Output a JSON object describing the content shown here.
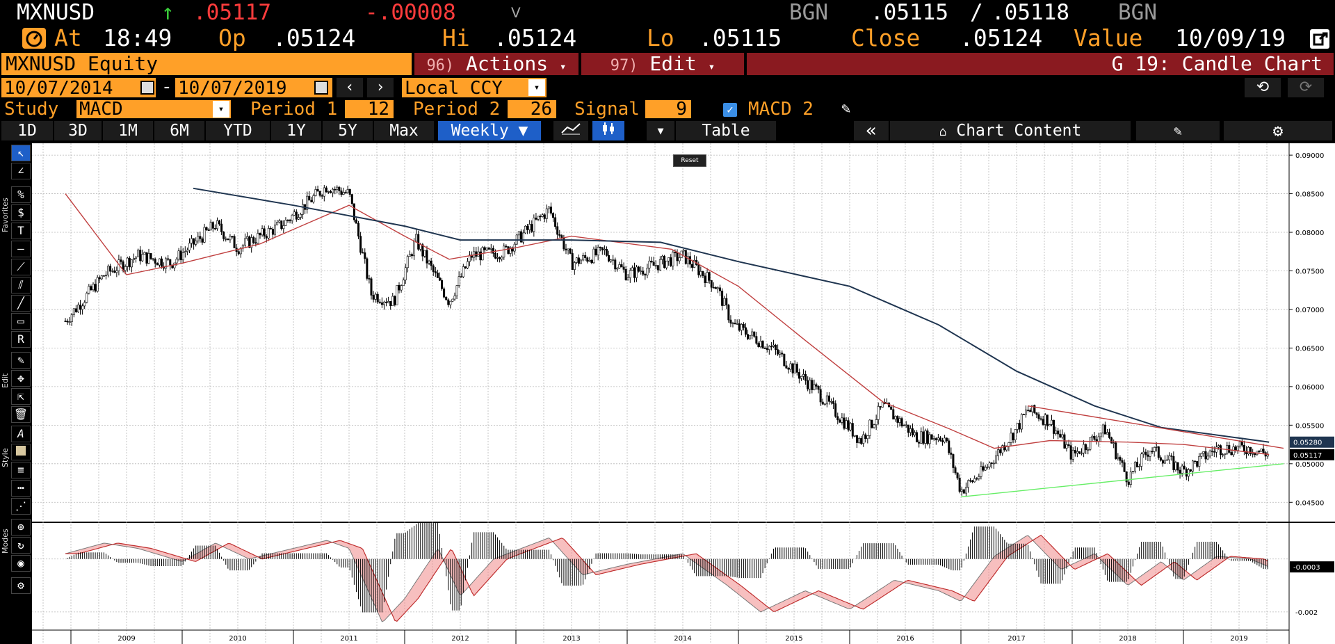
{
  "quote": {
    "ticker": "MXNUSD",
    "arrow": "↑",
    "last": ".05117",
    "change": "-.00008",
    "source1": "BGN",
    "bid": ".05115",
    "slash": "/",
    "ask": ".05118",
    "source2": "BGN"
  },
  "stats": {
    "at_label": "At",
    "time": "18:49",
    "op_label": "Op",
    "open": ".05124",
    "hi_label": "Hi",
    "high": ".05124",
    "lo_label": "Lo",
    "low": ".05115",
    "close_label": "Close",
    "close": ".05124",
    "value_label": "Value",
    "value_date": "10/09/19"
  },
  "header": {
    "security": "MXNUSD Equity",
    "actions_num": "96)",
    "actions_label": "Actions",
    "edit_num": "97)",
    "edit_label": "Edit",
    "function_title": "G 19: Candle Chart"
  },
  "range": {
    "start": "10/07/2014",
    "dash": "-",
    "end": "10/07/2019",
    "currency": "Local CCY"
  },
  "study": {
    "label": "Study",
    "value": "MACD",
    "period1_label": "Period 1",
    "period1": "12",
    "period2_label": "Period 2",
    "period2": "26",
    "signal_label": "Signal",
    "signal": "9",
    "macd2_label": "MACD 2"
  },
  "toolbar": {
    "periods": [
      "1D",
      "3D",
      "1M",
      "6M",
      "YTD",
      "1Y",
      "5Y",
      "Max"
    ],
    "frequency": "Weekly",
    "table": "Table",
    "chart_content": "Chart Content"
  },
  "side": {
    "favorites": "Favorites",
    "edit": "Edit",
    "style": "Style",
    "modes": "Modes"
  },
  "reset_label": "Reset",
  "colors": {
    "orange": "#ffa028",
    "red_value": "#ff3c3c",
    "green_arrow": "#3cd23c",
    "section_bar": "#8a1a20",
    "chart_bg": "#ffffff",
    "trend_green": "#66ee66",
    "ma_red": "#c04040",
    "ma_navy": "#1f3550",
    "macd_fill": "#f08a8a"
  },
  "chart_data": {
    "type": "candlestick",
    "frequency": "Weekly",
    "x_axis_years": [
      "2009",
      "2010",
      "2011",
      "2012",
      "2013",
      "2014",
      "2015",
      "2016",
      "2017",
      "2018",
      "2019"
    ],
    "y_ticks": [
      "0.09000",
      "0.08500",
      "0.08000",
      "0.07500",
      "0.07000",
      "0.06500",
      "0.06000",
      "0.05500",
      "0.05000",
      "0.04500"
    ],
    "ylim": [
      0.0425,
      0.091
    ],
    "price_path": [
      {
        "t": 2008.95,
        "v": 0.0685
      },
      {
        "t": 2009.3,
        "v": 0.0745
      },
      {
        "t": 2009.6,
        "v": 0.077
      },
      {
        "t": 2009.9,
        "v": 0.076
      },
      {
        "t": 2010.3,
        "v": 0.081
      },
      {
        "t": 2010.5,
        "v": 0.078
      },
      {
        "t": 2010.9,
        "v": 0.081
      },
      {
        "t": 2011.3,
        "v": 0.086
      },
      {
        "t": 2011.5,
        "v": 0.085
      },
      {
        "t": 2011.7,
        "v": 0.072
      },
      {
        "t": 2011.9,
        "v": 0.071
      },
      {
        "t": 2012.1,
        "v": 0.079
      },
      {
        "t": 2012.4,
        "v": 0.071
      },
      {
        "t": 2012.6,
        "v": 0.077
      },
      {
        "t": 2012.9,
        "v": 0.0775
      },
      {
        "t": 2013.3,
        "v": 0.083
      },
      {
        "t": 2013.5,
        "v": 0.076
      },
      {
        "t": 2013.8,
        "v": 0.0775
      },
      {
        "t": 2014.0,
        "v": 0.0745
      },
      {
        "t": 2014.5,
        "v": 0.077
      },
      {
        "t": 2014.8,
        "v": 0.073
      },
      {
        "t": 2014.95,
        "v": 0.068
      },
      {
        "t": 2015.3,
        "v": 0.065
      },
      {
        "t": 2015.7,
        "v": 0.0595
      },
      {
        "t": 2016.1,
        "v": 0.053
      },
      {
        "t": 2016.3,
        "v": 0.0575
      },
      {
        "t": 2016.6,
        "v": 0.0535
      },
      {
        "t": 2016.85,
        "v": 0.0535
      },
      {
        "t": 2017.0,
        "v": 0.0465
      },
      {
        "t": 2017.2,
        "v": 0.049
      },
      {
        "t": 2017.5,
        "v": 0.0545
      },
      {
        "t": 2017.6,
        "v": 0.057
      },
      {
        "t": 2017.8,
        "v": 0.0555
      },
      {
        "t": 2018.0,
        "v": 0.051
      },
      {
        "t": 2018.3,
        "v": 0.0545
      },
      {
        "t": 2018.5,
        "v": 0.048
      },
      {
        "t": 2018.7,
        "v": 0.052
      },
      {
        "t": 2019.0,
        "v": 0.049
      },
      {
        "t": 2019.3,
        "v": 0.052
      },
      {
        "t": 2019.6,
        "v": 0.052
      },
      {
        "t": 2019.77,
        "v": 0.0512
      }
    ],
    "moving_average_long": [
      {
        "t": 2010.1,
        "v": 0.0857
      },
      {
        "t": 2011.0,
        "v": 0.0835
      },
      {
        "t": 2012.0,
        "v": 0.0808
      },
      {
        "t": 2012.5,
        "v": 0.079
      },
      {
        "t": 2013.5,
        "v": 0.079
      },
      {
        "t": 2014.3,
        "v": 0.0787
      },
      {
        "t": 2015.0,
        "v": 0.0762
      },
      {
        "t": 2016.0,
        "v": 0.073
      },
      {
        "t": 2016.8,
        "v": 0.068
      },
      {
        "t": 2017.5,
        "v": 0.062
      },
      {
        "t": 2018.2,
        "v": 0.0575
      },
      {
        "t": 2018.8,
        "v": 0.0547
      },
      {
        "t": 2019.77,
        "v": 0.0528
      }
    ],
    "moving_average_short": [
      {
        "t": 2008.95,
        "v": 0.085
      },
      {
        "t": 2009.5,
        "v": 0.0745
      },
      {
        "t": 2010.0,
        "v": 0.076
      },
      {
        "t": 2010.7,
        "v": 0.0785
      },
      {
        "t": 2011.1,
        "v": 0.081
      },
      {
        "t": 2011.5,
        "v": 0.0835
      },
      {
        "t": 2012.0,
        "v": 0.0795
      },
      {
        "t": 2012.4,
        "v": 0.0765
      },
      {
        "t": 2013.0,
        "v": 0.078
      },
      {
        "t": 2013.5,
        "v": 0.0795
      },
      {
        "t": 2014.4,
        "v": 0.0778
      },
      {
        "t": 2015.0,
        "v": 0.073
      },
      {
        "t": 2015.6,
        "v": 0.066
      },
      {
        "t": 2016.3,
        "v": 0.058
      },
      {
        "t": 2016.9,
        "v": 0.0545
      },
      {
        "t": 2017.3,
        "v": 0.052
      },
      {
        "t": 2017.8,
        "v": 0.053
      },
      {
        "t": 2018.5,
        "v": 0.0528
      },
      {
        "t": 2019.0,
        "v": 0.0525
      },
      {
        "t": 2019.77,
        "v": 0.0512
      }
    ],
    "trendlines": [
      {
        "name": "support",
        "from": {
          "t": 2017.0,
          "v": 0.0457
        },
        "to": {
          "t": 2019.9,
          "v": 0.05
        }
      },
      {
        "name": "resistance",
        "from": {
          "t": 2017.6,
          "v": 0.0575
        },
        "to": {
          "t": 2019.9,
          "v": 0.052
        }
      }
    ],
    "last_price_labels": [
      "0.05280",
      "0.05117"
    ],
    "macd_panel": {
      "y_ticks": [
        "-0.002"
      ],
      "current_label": "-0.0003",
      "ylim": [
        -0.003,
        0.0012
      ],
      "macd_path": [
        {
          "t": 2008.95,
          "v": 0.0002
        },
        {
          "t": 2009.3,
          "v": 0.0006
        },
        {
          "t": 2009.6,
          "v": 0.0004
        },
        {
          "t": 2010.0,
          "v": -0.0001
        },
        {
          "t": 2010.3,
          "v": 0.0006
        },
        {
          "t": 2010.6,
          "v": 0.0
        },
        {
          "t": 2011.0,
          "v": 0.0004
        },
        {
          "t": 2011.3,
          "v": 0.0007
        },
        {
          "t": 2011.5,
          "v": 0.0004
        },
        {
          "t": 2011.8,
          "v": -0.0024
        },
        {
          "t": 2012.0,
          "v": -0.0015
        },
        {
          "t": 2012.3,
          "v": 0.0004
        },
        {
          "t": 2012.5,
          "v": -0.0014
        },
        {
          "t": 2012.8,
          "v": 0.0
        },
        {
          "t": 2013.3,
          "v": 0.0008
        },
        {
          "t": 2013.6,
          "v": -0.0006
        },
        {
          "t": 2014.0,
          "v": -0.0002
        },
        {
          "t": 2014.5,
          "v": 0.0002
        },
        {
          "t": 2014.9,
          "v": -0.001
        },
        {
          "t": 2015.2,
          "v": -0.002
        },
        {
          "t": 2015.6,
          "v": -0.0012
        },
        {
          "t": 2016.0,
          "v": -0.0019
        },
        {
          "t": 2016.4,
          "v": -0.0008
        },
        {
          "t": 2016.8,
          "v": -0.0012
        },
        {
          "t": 2017.0,
          "v": -0.0016
        },
        {
          "t": 2017.3,
          "v": 0.0001
        },
        {
          "t": 2017.6,
          "v": 0.0009
        },
        {
          "t": 2017.9,
          "v": -0.0004
        },
        {
          "t": 2018.2,
          "v": 0.0002
        },
        {
          "t": 2018.5,
          "v": -0.001
        },
        {
          "t": 2018.8,
          "v": -0.0001
        },
        {
          "t": 2019.0,
          "v": -0.0008
        },
        {
          "t": 2019.3,
          "v": 0.0001
        },
        {
          "t": 2019.6,
          "v": 0.0
        },
        {
          "t": 2019.77,
          "v": -0.0003
        }
      ]
    }
  }
}
